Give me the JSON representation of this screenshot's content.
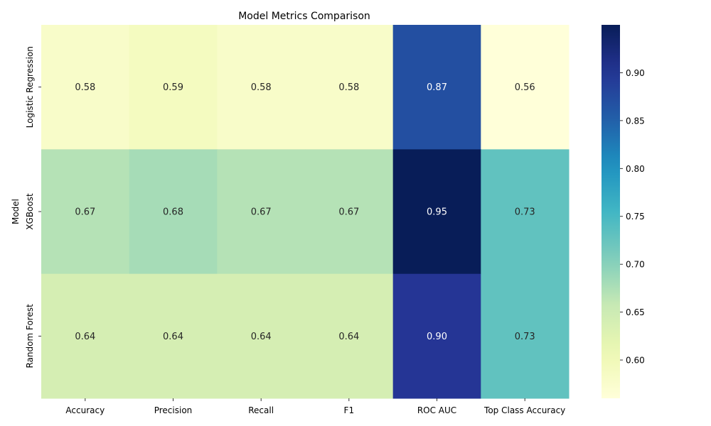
{
  "chart_data": {
    "type": "heatmap",
    "title": "Model Metrics Comparison",
    "xlabel": "",
    "ylabel": "Model",
    "x_categories": [
      "Accuracy",
      "Precision",
      "Recall",
      "F1",
      "ROC AUC",
      "Top Class Accuracy"
    ],
    "y_categories": [
      "Logistic Regression",
      "XGBoost",
      "Random Forest"
    ],
    "values": [
      [
        0.58,
        0.59,
        0.58,
        0.58,
        0.87,
        0.56
      ],
      [
        0.67,
        0.68,
        0.67,
        0.67,
        0.95,
        0.73
      ],
      [
        0.64,
        0.64,
        0.64,
        0.64,
        0.9,
        0.73
      ]
    ],
    "colormap": "YlGnBu",
    "color_range": [
      0.56,
      0.95
    ],
    "colorbar_ticks": [
      0.6,
      0.65,
      0.7,
      0.75,
      0.8,
      0.85,
      0.9
    ],
    "colorbar_tick_labels": [
      "0.60",
      "0.65",
      "0.70",
      "0.75",
      "0.80",
      "0.85",
      "0.90"
    ],
    "value_format": "2 decimals",
    "grid": false,
    "legend": "colorbar right"
  }
}
